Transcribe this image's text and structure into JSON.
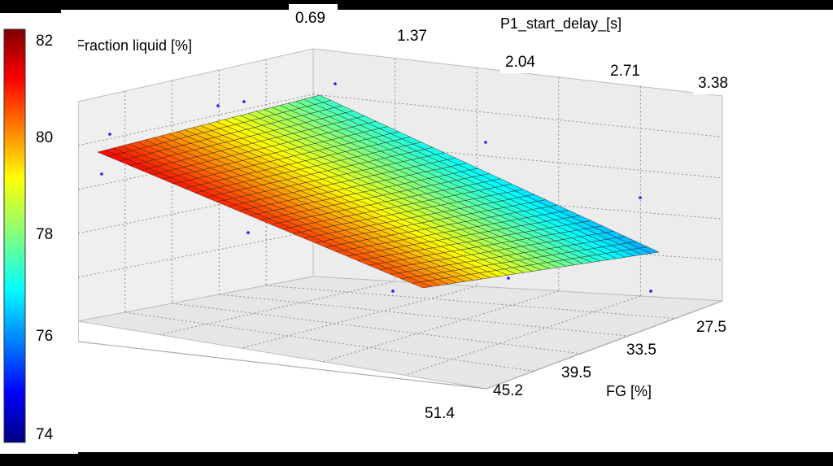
{
  "chart_data": {
    "type": "surface",
    "zlabel": "Fraction liquid [%]",
    "xlabel": "P1_start_delay_[s]",
    "ylabel": "FG [%]",
    "x_ticks": [
      "0.69",
      "1.37",
      "2.04",
      "2.71",
      "3.38"
    ],
    "y_ticks": [
      "27.5",
      "33.5",
      "39.5",
      "45.2",
      "51.4"
    ],
    "colorbar_ticks": [
      "82",
      "80",
      "78",
      "76",
      "74"
    ],
    "colorbar_range": [
      74,
      82
    ],
    "xlim": [
      0.69,
      3.38
    ],
    "ylim": [
      27.5,
      51.4
    ],
    "surface_corners": {
      "x_min_y_min": 81.0,
      "x_max_y_min": 77.5,
      "x_min_y_max": 80.3,
      "x_max_y_max": 76.3
    },
    "grid": true,
    "colormap": "jet"
  }
}
